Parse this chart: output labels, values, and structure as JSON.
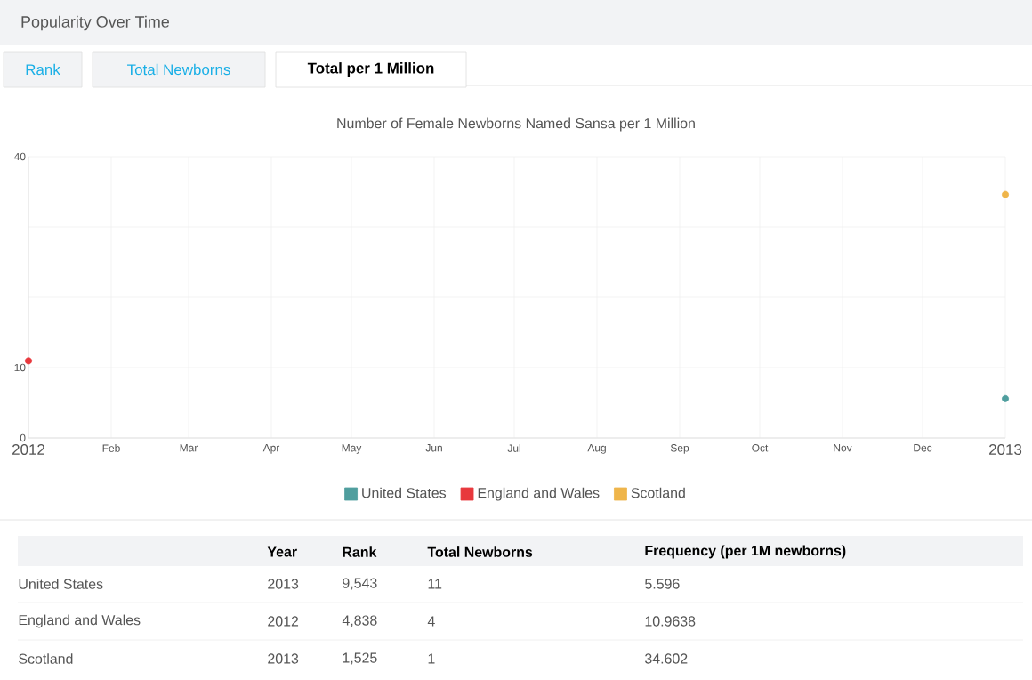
{
  "chart_data": {
    "type": "scatter",
    "title": "Number of Female Newborns Named Sansa per 1 Million",
    "annotations": [
      "Popularity Over Time",
      "Rank",
      "Total Newborns",
      "Total per 1 Million",
      "Year",
      "Rank",
      "Total Newborns",
      "Frequency (per 1M newborns)",
      "2013",
      "9,543",
      "11",
      "5.596",
      "2012",
      "4,838",
      "4",
      "10.9638",
      "2013",
      "1,525",
      "1",
      "34.602"
    ],
    "series": [
      {
        "name": "United States",
        "color": "#4f9e9e",
        "x": [
          "2013"
        ],
        "values": [
          5.596
        ]
      },
      {
        "name": "England and Wales",
        "color": "#e8383d",
        "x": [
          "2012"
        ],
        "values": [
          10.9638
        ]
      },
      {
        "name": "Scotland",
        "color": "#efb54a",
        "x": [
          "2013"
        ],
        "values": [
          34.602
        ]
      }
    ],
    "xlim": [
      "2012",
      "2013"
    ],
    "xticks": [
      {
        "value": "2012",
        "label": "2012"
      },
      {
        "value": "2012-02",
        "label": "Feb"
      },
      {
        "value": "2012-03",
        "label": "Mar"
      },
      {
        "value": "2012-04",
        "label": "Apr"
      },
      {
        "value": "2012-05",
        "label": "May"
      },
      {
        "value": "2012-06",
        "label": "Jun"
      },
      {
        "value": "2012-07",
        "label": "Jul"
      },
      {
        "value": "2012-08",
        "label": "Aug"
      },
      {
        "value": "2012-09",
        "label": "Sep"
      },
      {
        "value": "2012-10",
        "label": "Oct"
      },
      {
        "value": "2012-11",
        "label": "Nov"
      },
      {
        "value": "2012-12",
        "label": "Dec"
      },
      {
        "value": "2013",
        "label": "2013"
      }
    ],
    "ylim": [
      0,
      40
    ],
    "yticks": [
      0,
      10,
      {
        "value": 20,
        "label": null
      },
      {
        "value": 30,
        "label": null
      },
      40
    ],
    "grid": true,
    "legend": "bottom",
    "marker": "circle"
  }
}
